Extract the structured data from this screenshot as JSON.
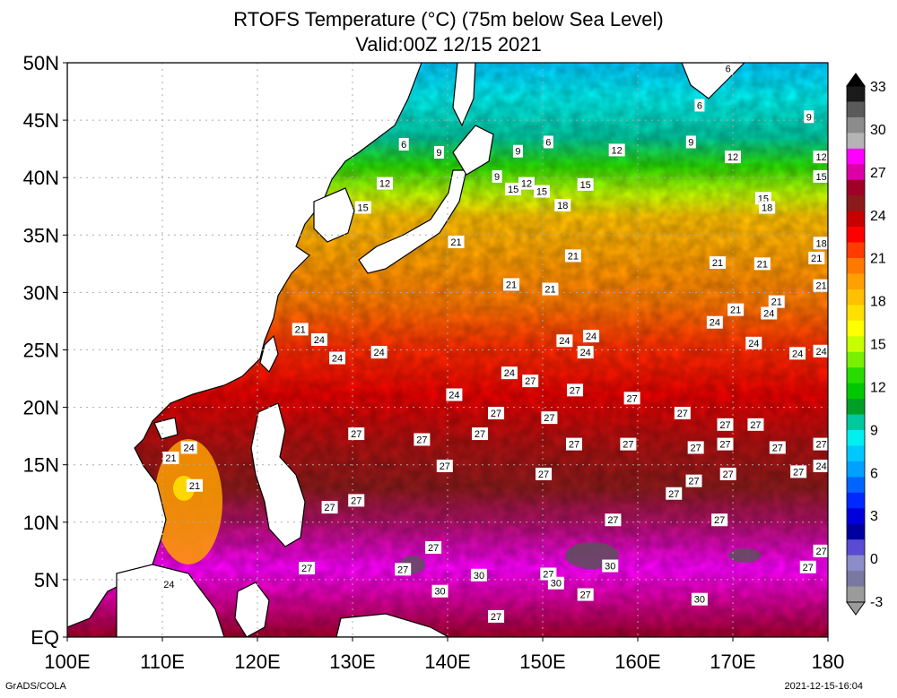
{
  "title_line1": "RTOFS Temperature (°C) (75m below Sea Level)",
  "title_line2": "Valid:00Z 12/15 2021",
  "credit": "GrADS/COLA",
  "timestamp": "2021-12-15-16:04",
  "lat_labels": [
    "50N",
    "45N",
    "40N",
    "35N",
    "30N",
    "25N",
    "20N",
    "15N",
    "10N",
    "5N",
    "EQ"
  ],
  "lon_labels": [
    "100E",
    "110E",
    "120E",
    "130E",
    "140E",
    "150E",
    "160E",
    "170E",
    "180"
  ],
  "colorbar": {
    "labels": [
      "33",
      "30",
      "27",
      "24",
      "21",
      "18",
      "15",
      "12",
      "9",
      "6",
      "3",
      "0",
      "-3"
    ],
    "colors": [
      "#1a1a1a",
      "#5a5a5a",
      "#8c8c8c",
      "#b4b4b4",
      "#ff00ff",
      "#dd00a6",
      "#a00028",
      "#8b1a1a",
      "#c80000",
      "#ff0000",
      "#ff3c00",
      "#ff7800",
      "#ffa000",
      "#ffc000",
      "#ffe000",
      "#ffff00",
      "#c8ff00",
      "#78f000",
      "#28dc00",
      "#00c800",
      "#00a028",
      "#00c8a0",
      "#00f0f0",
      "#00c8ff",
      "#00a0ff",
      "#0064ff",
      "#0028ff",
      "#0000dc",
      "#0000a0",
      "#5a4bd2",
      "#8c8cc8",
      "#7878a0",
      "#9b9b9b"
    ]
  },
  "contour_labels": [
    {
      "text": "6",
      "lon": 169.5,
      "lat": 49.5
    },
    {
      "text": "6",
      "lon": 166.5,
      "lat": 46.3
    },
    {
      "text": "9",
      "lon": 178.0,
      "lat": 45.3
    },
    {
      "text": "6",
      "lon": 135.4,
      "lat": 42.9
    },
    {
      "text": "9",
      "lon": 139.1,
      "lat": 42.2
    },
    {
      "text": "9",
      "lon": 147.4,
      "lat": 42.3
    },
    {
      "text": "6",
      "lon": 150.6,
      "lat": 43.1
    },
    {
      "text": "12",
      "lon": 157.8,
      "lat": 42.4
    },
    {
      "text": "9",
      "lon": 165.6,
      "lat": 43.1
    },
    {
      "text": "12",
      "lon": 170.0,
      "lat": 41.8
    },
    {
      "text": "12",
      "lon": 182.0,
      "lat": 41.8
    },
    {
      "text": "9",
      "lon": 145.2,
      "lat": 40.1
    },
    {
      "text": "12",
      "lon": 133.4,
      "lat": 39.5
    },
    {
      "text": "12",
      "lon": 148.3,
      "lat": 39.5
    },
    {
      "text": "15",
      "lon": 146.9,
      "lat": 39.0
    },
    {
      "text": "15",
      "lon": 149.9,
      "lat": 38.8
    },
    {
      "text": "15",
      "lon": 154.5,
      "lat": 39.4
    },
    {
      "text": "15",
      "lon": 181.4,
      "lat": 40.1
    },
    {
      "text": "15",
      "lon": 131.1,
      "lat": 37.4
    },
    {
      "text": "18",
      "lon": 152.1,
      "lat": 37.6
    },
    {
      "text": "15",
      "lon": 173.2,
      "lat": 38.2
    },
    {
      "text": "18",
      "lon": 173.6,
      "lat": 37.4
    },
    {
      "text": "21",
      "lon": 140.9,
      "lat": 34.4
    },
    {
      "text": "18",
      "lon": 181.7,
      "lat": 34.3
    },
    {
      "text": "21",
      "lon": 153.2,
      "lat": 33.2
    },
    {
      "text": "21",
      "lon": 168.4,
      "lat": 32.6
    },
    {
      "text": "21",
      "lon": 173.1,
      "lat": 32.5
    },
    {
      "text": "21",
      "lon": 178.8,
      "lat": 33.0
    },
    {
      "text": "21",
      "lon": 146.7,
      "lat": 30.7
    },
    {
      "text": "21",
      "lon": 150.8,
      "lat": 30.3
    },
    {
      "text": "21",
      "lon": 181.3,
      "lat": 30.6
    },
    {
      "text": "21",
      "lon": 174.6,
      "lat": 29.2
    },
    {
      "text": "24",
      "lon": 173.8,
      "lat": 28.2
    },
    {
      "text": "21",
      "lon": 170.3,
      "lat": 28.5
    },
    {
      "text": "24",
      "lon": 168.1,
      "lat": 27.4
    },
    {
      "text": "21",
      "lon": 124.5,
      "lat": 26.8
    },
    {
      "text": "24",
      "lon": 126.5,
      "lat": 25.9
    },
    {
      "text": "24",
      "lon": 155.1,
      "lat": 26.2
    },
    {
      "text": "24",
      "lon": 152.3,
      "lat": 25.8
    },
    {
      "text": "24",
      "lon": 172.2,
      "lat": 25.6
    },
    {
      "text": "24",
      "lon": 132.8,
      "lat": 24.8
    },
    {
      "text": "24",
      "lon": 154.5,
      "lat": 24.8
    },
    {
      "text": "24",
      "lon": 176.8,
      "lat": 24.7
    },
    {
      "text": "24",
      "lon": 181.9,
      "lat": 24.9
    },
    {
      "text": "24",
      "lon": 128.4,
      "lat": 24.3
    },
    {
      "text": "24",
      "lon": 146.5,
      "lat": 23.0
    },
    {
      "text": "27",
      "lon": 148.7,
      "lat": 22.3
    },
    {
      "text": "27",
      "lon": 153.4,
      "lat": 21.5
    },
    {
      "text": "24",
      "lon": 140.7,
      "lat": 21.1
    },
    {
      "text": "27",
      "lon": 159.4,
      "lat": 20.8
    },
    {
      "text": "27",
      "lon": 145.1,
      "lat": 19.5
    },
    {
      "text": "27",
      "lon": 150.7,
      "lat": 19.1
    },
    {
      "text": "27",
      "lon": 164.7,
      "lat": 19.5
    },
    {
      "text": "27",
      "lon": 169.2,
      "lat": 18.5
    },
    {
      "text": "27",
      "lon": 172.4,
      "lat": 18.5
    },
    {
      "text": "27",
      "lon": 130.4,
      "lat": 17.7
    },
    {
      "text": "27",
      "lon": 137.3,
      "lat": 17.2
    },
    {
      "text": "27",
      "lon": 143.4,
      "lat": 17.7
    },
    {
      "text": "27",
      "lon": 153.3,
      "lat": 16.8
    },
    {
      "text": "27",
      "lon": 159.0,
      "lat": 16.8
    },
    {
      "text": "27",
      "lon": 166.1,
      "lat": 16.5
    },
    {
      "text": "27",
      "lon": 169.2,
      "lat": 16.8
    },
    {
      "text": "27",
      "lon": 174.7,
      "lat": 16.5
    },
    {
      "text": "27",
      "lon": 180.9,
      "lat": 16.8
    },
    {
      "text": "24",
      "lon": 182.4,
      "lat": 14.9
    },
    {
      "text": "27",
      "lon": 139.7,
      "lat": 14.9
    },
    {
      "text": "27",
      "lon": 150.1,
      "lat": 14.2
    },
    {
      "text": "27",
      "lon": 169.5,
      "lat": 14.2
    },
    {
      "text": "27",
      "lon": 176.9,
      "lat": 14.4
    },
    {
      "text": "27",
      "lon": 165.9,
      "lat": 13.6
    },
    {
      "text": "27",
      "lon": 163.8,
      "lat": 12.5
    },
    {
      "text": "27",
      "lon": 130.4,
      "lat": 11.9
    },
    {
      "text": "27",
      "lon": 127.6,
      "lat": 11.3
    },
    {
      "text": "27",
      "lon": 157.4,
      "lat": 10.2
    },
    {
      "text": "27",
      "lon": 168.6,
      "lat": 10.2
    },
    {
      "text": "27",
      "lon": 179.7,
      "lat": 7.5
    },
    {
      "text": "27",
      "lon": 150.6,
      "lat": 5.5
    },
    {
      "text": "30",
      "lon": 151.4,
      "lat": 4.7
    },
    {
      "text": "27",
      "lon": 138.5,
      "lat": 7.8
    },
    {
      "text": "27",
      "lon": 125.2,
      "lat": 6.0
    },
    {
      "text": "30",
      "lon": 157.1,
      "lat": 6.2
    },
    {
      "text": "30",
      "lon": 143.3,
      "lat": 5.4
    },
    {
      "text": "30",
      "lon": 139.2,
      "lat": 4.0
    },
    {
      "text": "27",
      "lon": 177.9,
      "lat": 6.1
    },
    {
      "text": "27",
      "lon": 135.3,
      "lat": 5.9
    },
    {
      "text": "27",
      "lon": 154.5,
      "lat": 3.7
    },
    {
      "text": "30",
      "lon": 166.5,
      "lat": 3.3
    },
    {
      "text": "27",
      "lon": 145.1,
      "lat": 1.8
    },
    {
      "text": "21",
      "lon": 110.9,
      "lat": 15.6
    },
    {
      "text": "24",
      "lon": 112.8,
      "lat": 16.5
    },
    {
      "text": "21",
      "lon": 113.4,
      "lat": 13.2
    },
    {
      "text": "24",
      "lon": 110.7,
      "lat": 4.6
    }
  ]
}
